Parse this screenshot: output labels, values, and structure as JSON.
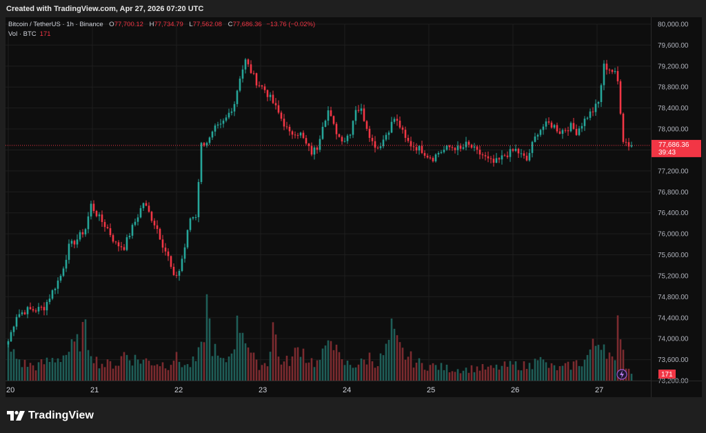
{
  "header": {
    "created_text": "Created with TradingView.com, Apr 27, 2026 07:20 UTC"
  },
  "legend": {
    "symbol": "Bitcoin / TetherUS · 1h · Binance",
    "open_label": "O",
    "open": "77,700.12",
    "high_label": "H",
    "high": "77,734.79",
    "low_label": "L",
    "low": "77,562.08",
    "close_label": "C",
    "close": "77,686.36",
    "change": "−13.76 (−0.02%)",
    "vol_label": "Vol · BTC",
    "vol_value": "171"
  },
  "price_badge": {
    "price": "77,686.36",
    "countdown": "39:43"
  },
  "volume_badge": "171",
  "brand": {
    "name": "TradingView"
  },
  "colors": {
    "up": "#26a69a",
    "down": "#f23645",
    "vol_up": "#1f5e58",
    "vol_down": "#7c2b2f",
    "background": "#0e0e0e",
    "grid": "#1e1e1e"
  },
  "chart_data": {
    "type": "candlestick",
    "y_ticks": [
      "80,000.00",
      "79,600.00",
      "79,200.00",
      "78,800.00",
      "78,400.00",
      "78,000.00",
      "77,600.00",
      "77,200.00",
      "76,800.00",
      "76,400.00",
      "76,000.00",
      "75,600.00",
      "75,200.00",
      "74,800.00",
      "74,400.00",
      "74,000.00",
      "73,600.00",
      "73,200.00"
    ],
    "y_tick_values": [
      80000,
      79600,
      79200,
      78800,
      78400,
      78000,
      77600,
      77200,
      76800,
      76400,
      76000,
      75600,
      75200,
      74800,
      74400,
      74000,
      73600,
      73200
    ],
    "ylim": [
      73200,
      80000
    ],
    "x_ticks": [
      "20",
      "21",
      "22",
      "23",
      "24",
      "25",
      "26",
      "27"
    ],
    "last_price": 77686.36,
    "anchors": [
      [
        0,
        73950
      ],
      [
        3,
        74450
      ],
      [
        7,
        74550
      ],
      [
        10,
        74550
      ],
      [
        13,
        74600
      ],
      [
        16,
        74900
      ],
      [
        19,
        75200
      ],
      [
        22,
        75750
      ],
      [
        25,
        75900
      ],
      [
        28,
        76100
      ],
      [
        30,
        76550
      ],
      [
        33,
        76300
      ],
      [
        36,
        76100
      ],
      [
        39,
        75800
      ],
      [
        42,
        75750
      ],
      [
        44,
        76000
      ],
      [
        47,
        76350
      ],
      [
        49,
        76600
      ],
      [
        51,
        76400
      ],
      [
        54,
        76100
      ],
      [
        56,
        75800
      ],
      [
        58,
        75550
      ],
      [
        60,
        75150
      ],
      [
        62,
        75300
      ],
      [
        64,
        75750
      ],
      [
        66,
        76300
      ],
      [
        68,
        76350
      ],
      [
        70,
        77700
      ],
      [
        73,
        77800
      ],
      [
        75,
        78000
      ],
      [
        77,
        78050
      ],
      [
        79,
        78200
      ],
      [
        82,
        78500
      ],
      [
        84,
        79000
      ],
      [
        86,
        79300
      ],
      [
        88,
        79100
      ],
      [
        90,
        78900
      ],
      [
        93,
        78750
      ],
      [
        96,
        78500
      ],
      [
        98,
        78300
      ],
      [
        100,
        78100
      ],
      [
        102,
        77900
      ],
      [
        104,
        77950
      ],
      [
        106,
        77900
      ],
      [
        108,
        77700
      ],
      [
        110,
        77550
      ],
      [
        112,
        77650
      ],
      [
        114,
        78100
      ],
      [
        116,
        78350
      ],
      [
        118,
        78050
      ],
      [
        120,
        77850
      ],
      [
        122,
        77800
      ],
      [
        124,
        77950
      ],
      [
        126,
        78400
      ],
      [
        128,
        78350
      ],
      [
        130,
        78050
      ],
      [
        132,
        77750
      ],
      [
        134,
        77650
      ],
      [
        136,
        77800
      ],
      [
        138,
        78000
      ],
      [
        140,
        78200
      ],
      [
        142,
        78050
      ],
      [
        144,
        77800
      ],
      [
        146,
        77700
      ],
      [
        148,
        77650
      ],
      [
        150,
        77600
      ],
      [
        152,
        77500
      ],
      [
        154,
        77450
      ],
      [
        156,
        77550
      ],
      [
        158,
        77600
      ],
      [
        160,
        77650
      ],
      [
        162,
        77650
      ],
      [
        164,
        77600
      ],
      [
        166,
        77700
      ],
      [
        168,
        77650
      ],
      [
        170,
        77550
      ],
      [
        172,
        77500
      ],
      [
        174,
        77400
      ],
      [
        176,
        77350
      ],
      [
        178,
        77400
      ],
      [
        180,
        77500
      ],
      [
        182,
        77550
      ],
      [
        184,
        77600
      ],
      [
        186,
        77500
      ],
      [
        188,
        77400
      ],
      [
        190,
        77700
      ],
      [
        192,
        77950
      ],
      [
        194,
        78050
      ],
      [
        196,
        78100
      ],
      [
        198,
        78050
      ],
      [
        200,
        77950
      ],
      [
        202,
        78000
      ],
      [
        204,
        78050
      ],
      [
        206,
        77950
      ],
      [
        208,
        78100
      ],
      [
        210,
        78250
      ],
      [
        212,
        78350
      ],
      [
        214,
        78500
      ],
      [
        216,
        79200
      ],
      [
        218,
        79150
      ],
      [
        220,
        79050
      ],
      [
        221,
        78900
      ],
      [
        223,
        77800
      ],
      [
        225,
        77700
      ],
      [
        226,
        77686
      ]
    ],
    "volume_ylim": [
      0,
      100
    ],
    "volume_anchors": [
      [
        0,
        40
      ],
      [
        5,
        22
      ],
      [
        10,
        18
      ],
      [
        15,
        25
      ],
      [
        20,
        32
      ],
      [
        25,
        45
      ],
      [
        26,
        55
      ],
      [
        27,
        60
      ],
      [
        28,
        58
      ],
      [
        30,
        42
      ],
      [
        32,
        25
      ],
      [
        35,
        20
      ],
      [
        40,
        22
      ],
      [
        42,
        35
      ],
      [
        45,
        28
      ],
      [
        50,
        25
      ],
      [
        55,
        22
      ],
      [
        58,
        20
      ],
      [
        60,
        30
      ],
      [
        63,
        22
      ],
      [
        65,
        18
      ],
      [
        68,
        25
      ],
      [
        70,
        38
      ],
      [
        72,
        95
      ],
      [
        74,
        45
      ],
      [
        76,
        28
      ],
      [
        78,
        22
      ],
      [
        80,
        30
      ],
      [
        82,
        55
      ],
      [
        84,
        75
      ],
      [
        86,
        60
      ],
      [
        88,
        35
      ],
      [
        90,
        20
      ],
      [
        94,
        22
      ],
      [
        96,
        75
      ],
      [
        98,
        30
      ],
      [
        100,
        22
      ],
      [
        103,
        28
      ],
      [
        106,
        45
      ],
      [
        108,
        30
      ],
      [
        110,
        25
      ],
      [
        112,
        22
      ],
      [
        115,
        35
      ],
      [
        117,
        72
      ],
      [
        119,
        35
      ],
      [
        121,
        22
      ],
      [
        125,
        20
      ],
      [
        128,
        22
      ],
      [
        131,
        30
      ],
      [
        134,
        22
      ],
      [
        137,
        38
      ],
      [
        139,
        60
      ],
      [
        141,
        45
      ],
      [
        143,
        35
      ],
      [
        145,
        30
      ],
      [
        147,
        25
      ],
      [
        150,
        20
      ],
      [
        155,
        18
      ],
      [
        160,
        15
      ],
      [
        165,
        14
      ],
      [
        170,
        16
      ],
      [
        175,
        15
      ],
      [
        180,
        18
      ],
      [
        185,
        20
      ],
      [
        188,
        18
      ],
      [
        190,
        20
      ],
      [
        191,
        42
      ],
      [
        193,
        25
      ],
      [
        196,
        18
      ],
      [
        200,
        15
      ],
      [
        203,
        18
      ],
      [
        206,
        22
      ],
      [
        209,
        25
      ],
      [
        211,
        38
      ],
      [
        213,
        45
      ],
      [
        215,
        55
      ],
      [
        217,
        42
      ],
      [
        219,
        25
      ],
      [
        220,
        20
      ],
      [
        221,
        68
      ],
      [
        222,
        75
      ],
      [
        223,
        40
      ],
      [
        224,
        20
      ],
      [
        225,
        14
      ],
      [
        226,
        12
      ]
    ]
  }
}
